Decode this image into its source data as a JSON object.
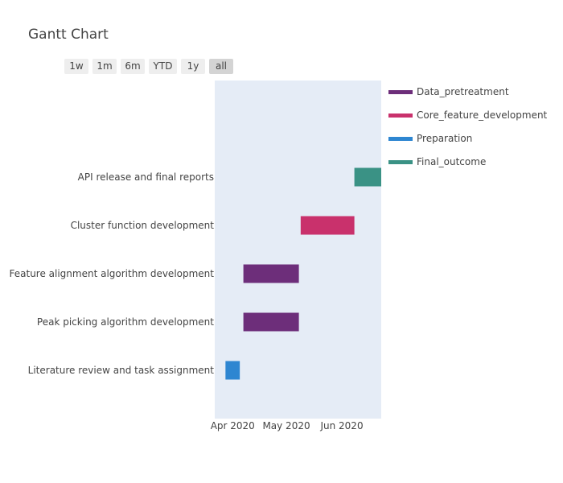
{
  "chart_title": "Gantt Chart",
  "range_selector": [
    "1w",
    "1m",
    "6m",
    "YTD",
    "1y",
    "all"
  ],
  "range_selector_active": "all",
  "chart_data": {
    "type": "gantt",
    "title": "Gantt Chart",
    "xaxis": {
      "type": "date",
      "range": [
        "2020-03-22",
        "2020-06-23"
      ],
      "ticks": [
        {
          "date": "2020-04-01",
          "label": "Apr 2020"
        },
        {
          "date": "2020-05-01",
          "label": "May 2020"
        },
        {
          "date": "2020-06-01",
          "label": "Jun 2020"
        }
      ]
    },
    "plot_background": "#e5ecf6",
    "legend_position": "top-right",
    "groups": [
      {
        "name": "Data_pretreatment",
        "color": "#6d2e7a"
      },
      {
        "name": "Core_feature_development",
        "color": "#c9316c"
      },
      {
        "name": "Preparation",
        "color": "#2e86d1"
      },
      {
        "name": "Final_outcome",
        "color": "#3a9285"
      }
    ],
    "tasks": [
      {
        "task": "Literature review and task assignment",
        "start": "2020-03-28",
        "end": "2020-04-05",
        "group": "Preparation"
      },
      {
        "task": "Peak picking algorithm development",
        "start": "2020-04-07",
        "end": "2020-05-08",
        "group": "Data_pretreatment"
      },
      {
        "task": "Feature alignment algorithm development",
        "start": "2020-04-07",
        "end": "2020-05-08",
        "group": "Data_pretreatment"
      },
      {
        "task": "Cluster function development",
        "start": "2020-05-09",
        "end": "2020-06-08",
        "group": "Core_feature_development"
      },
      {
        "task": "API release and final reports",
        "start": "2020-06-08",
        "end": "2020-06-23",
        "group": "Final_outcome"
      }
    ]
  }
}
